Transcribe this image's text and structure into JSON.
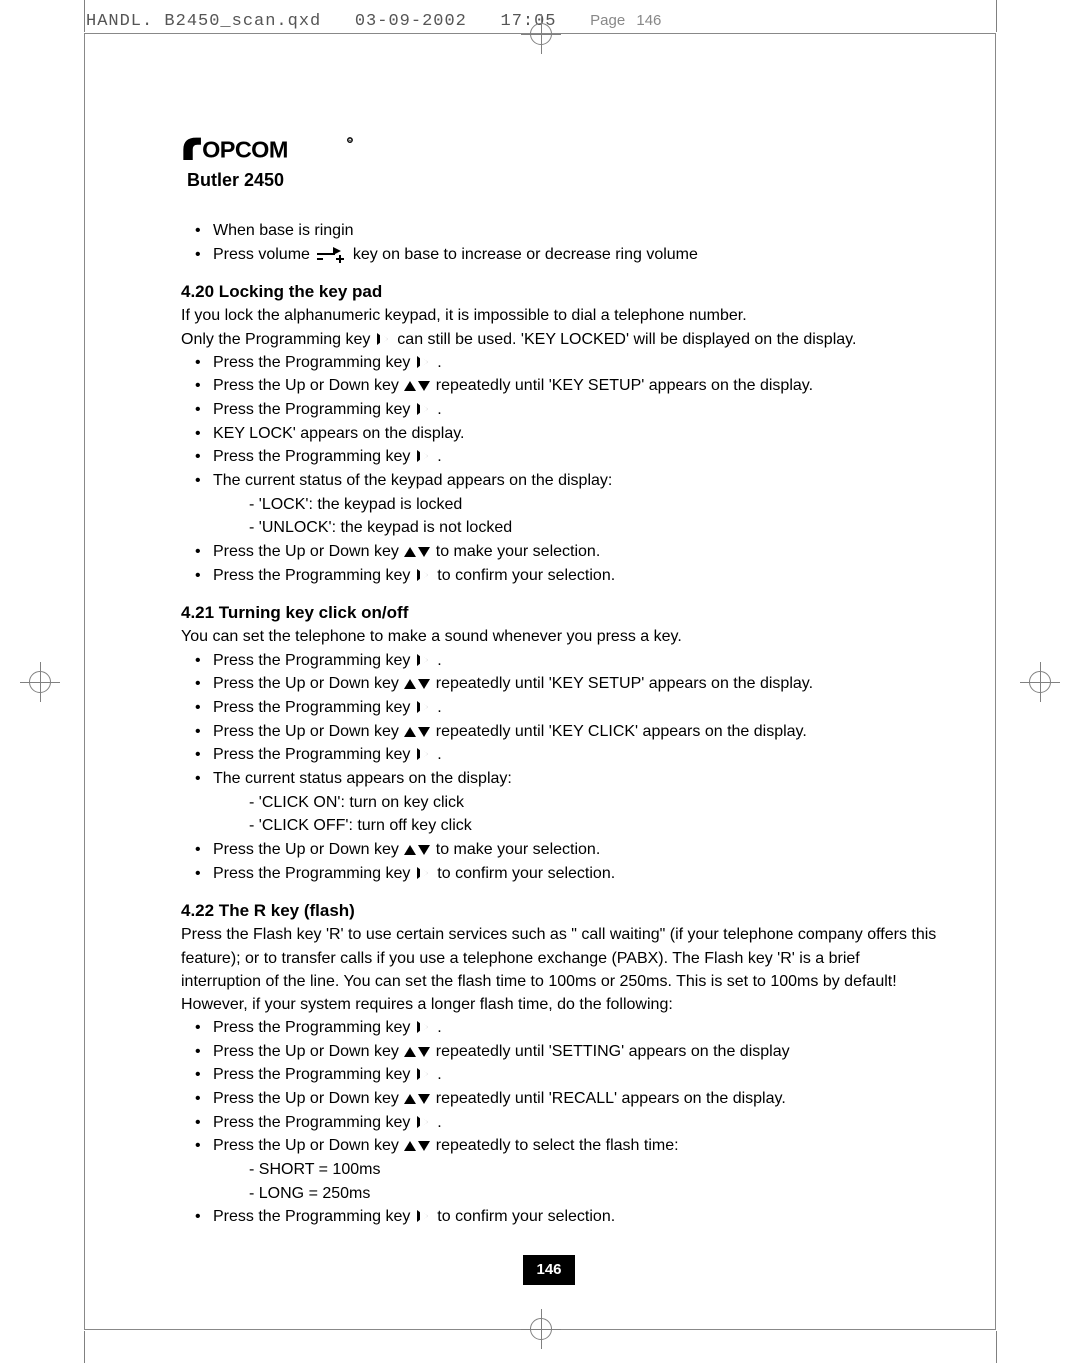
{
  "slug": {
    "file": "HANDL. B2450_scan.qxd",
    "date": "03-09-2002",
    "time": "17:05",
    "page_word": "Page",
    "page_no": "146"
  },
  "brand": "TOPCOM",
  "model": "Butler 2450",
  "intro_items": [
    "When base is ringin",
    "Press volume [vol] key on base to increase or decrease ring volume"
  ],
  "sections": [
    {
      "heading": "4.20 Locking the key pad",
      "paras": [
        "If you lock the alphanumeric keypad, it is impossible to dial a telephone number.",
        "Only the Programming key [prog] can still be used. 'KEY LOCKED' will be displayed on the display."
      ],
      "bullets": [
        {
          "t": "Press the Programming key [prog] ."
        },
        {
          "t": "Press the Up or Down key [updn] repeatedly until 'KEY SETUP' appears on the display."
        },
        {
          "t": "Press the Programming key [prog] ."
        },
        {
          "t": "KEY LOCK' appears on the display."
        },
        {
          "t": "Press the Programming key [prog] ."
        },
        {
          "t": "The current status of the keypad appears on the display:",
          "subs": [
            "- 'LOCK': the keypad is locked",
            "- 'UNLOCK': the keypad is not locked"
          ]
        },
        {
          "t": "Press the Up or Down key [updn] to make your selection."
        },
        {
          "t": "Press the Programming key [prog] to confirm your selection."
        }
      ]
    },
    {
      "heading": "4.21 Turning key click on/off",
      "paras": [
        "You can set the telephone to make a sound whenever you press a key."
      ],
      "bullets": [
        {
          "t": "Press the Programming key [prog] ."
        },
        {
          "t": "Press the Up or Down key [updn] repeatedly until 'KEY SETUP' appears on the display."
        },
        {
          "t": "Press the Programming key [prog] ."
        },
        {
          "t": "Press the Up or Down key [updn] repeatedly until 'KEY CLICK' appears on the display."
        },
        {
          "t": "Press the Programming key [prog] ."
        },
        {
          "t": "The current status appears on the display:",
          "subs": [
            "- 'CLICK ON': turn on key click",
            "- 'CLICK OFF': turn off key click"
          ]
        },
        {
          "t": "Press the Up or Down key [updn] to make your selection."
        },
        {
          "t": "Press the Programming key [prog] to confirm your selection."
        }
      ]
    },
    {
      "heading": "4.22 The R key (flash)",
      "paras": [
        "Press the Flash key 'R' to use certain services such as \" call waiting\" (if your telephone company offers this feature); or to transfer calls if you use a telephone exchange (PABX). The Flash key 'R' is a brief interruption of the line. You can set the flash time to 100ms or 250ms. This is set to 100ms by default! However, if your system requires a longer flash time, do the following:"
      ],
      "bullets": [
        {
          "t": "Press the Programming key [prog] ."
        },
        {
          "t": "Press the Up or Down key [updn] repeatedly until 'SETTING' appears on the display"
        },
        {
          "t": "Press the Programming key [prog] ."
        },
        {
          "t": "Press the Up or Down key [updn] repeatedly until 'RECALL' appears on the display."
        },
        {
          "t": "Press the Programming key [prog] ."
        },
        {
          "t": "Press the Up or Down key [updn] repeatedly to select the flash time:",
          "subs": [
            "- SHORT = 100ms",
            "- LONG = 250ms"
          ]
        },
        {
          "t": "Press the Programming key [prog] to confirm your selection."
        }
      ]
    }
  ],
  "page_number": "146"
}
